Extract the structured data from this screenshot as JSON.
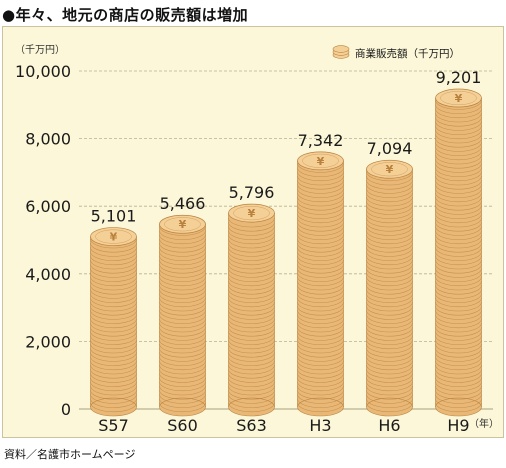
{
  "title": "●年々、地元の商店の販売額は増加",
  "source": "資料／名護市ホームページ",
  "chart_data": {
    "type": "bar",
    "title": "●年々、地元の商店の販売額は増加",
    "categories": [
      "S57",
      "S60",
      "S63",
      "H3",
      "H6",
      "H9"
    ],
    "series": [
      {
        "name": "商業販売額（千万円）",
        "values": [
          5101,
          5466,
          5796,
          7342,
          7094,
          9201
        ]
      }
    ],
    "data_labels": [
      "5,101",
      "5,466",
      "5,796",
      "7,342",
      "7,094",
      "9,201"
    ],
    "y_ticks": [
      "0",
      "2,000",
      "4,000",
      "6,000",
      "8,000",
      "10,000"
    ],
    "y_tick_values": [
      0,
      2000,
      4000,
      6000,
      8000,
      10000
    ],
    "ylim": [
      0,
      10000
    ],
    "yunit": "（千万円）",
    "xunit": "（年）",
    "grid": true,
    "legend_position": "top-right",
    "colors": {
      "coin": "#e9b877",
      "coin_edge": "#b9813e",
      "coin_top": "#f4cf96",
      "grid": "#b8b290",
      "panel": "#fbf7d8"
    }
  }
}
